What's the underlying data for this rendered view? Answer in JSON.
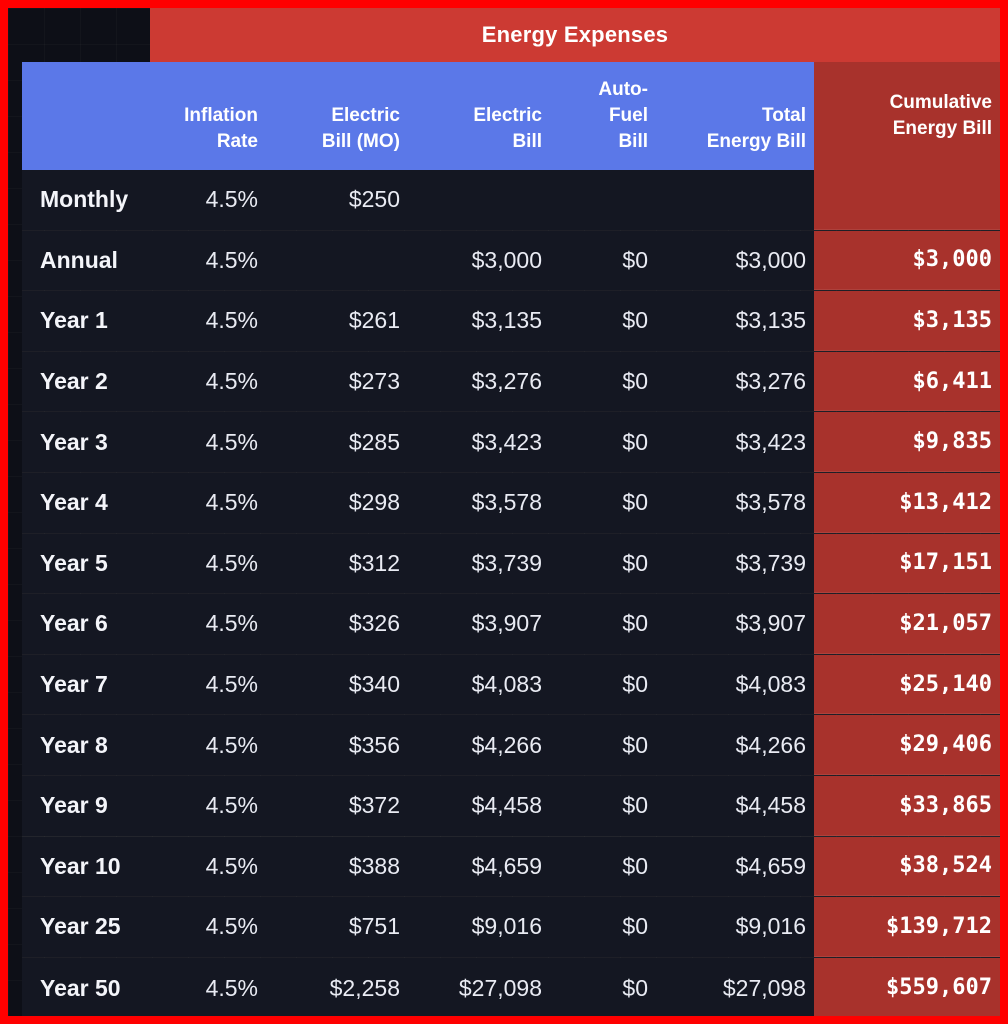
{
  "title": "Energy Expenses",
  "headers": [
    "",
    "Inflation\nRate",
    "Electric\nBill (MO)",
    "Electric\nBill",
    "Auto-\nFuel\nBill",
    "Total\nEnergy Bill",
    "Cumulative\nEnergy Bill"
  ],
  "rows": [
    [
      "Monthly",
      "4.5%",
      "$250",
      "",
      "",
      "",
      ""
    ],
    [
      "Annual",
      "4.5%",
      "",
      "$3,000",
      "$0",
      "$3,000",
      "$3,000"
    ],
    [
      "Year 1",
      "4.5%",
      "$261",
      "$3,135",
      "$0",
      "$3,135",
      "$3,135"
    ],
    [
      "Year 2",
      "4.5%",
      "$273",
      "$3,276",
      "$0",
      "$3,276",
      "$6,411"
    ],
    [
      "Year 3",
      "4.5%",
      "$285",
      "$3,423",
      "$0",
      "$3,423",
      "$9,835"
    ],
    [
      "Year 4",
      "4.5%",
      "$298",
      "$3,578",
      "$0",
      "$3,578",
      "$13,412"
    ],
    [
      "Year 5",
      "4.5%",
      "$312",
      "$3,739",
      "$0",
      "$3,739",
      "$17,151"
    ],
    [
      "Year 6",
      "4.5%",
      "$326",
      "$3,907",
      "$0",
      "$3,907",
      "$21,057"
    ],
    [
      "Year 7",
      "4.5%",
      "$340",
      "$4,083",
      "$0",
      "$4,083",
      "$25,140"
    ],
    [
      "Year 8",
      "4.5%",
      "$356",
      "$4,266",
      "$0",
      "$4,266",
      "$29,406"
    ],
    [
      "Year 9",
      "4.5%",
      "$372",
      "$4,458",
      "$0",
      "$4,458",
      "$33,865"
    ],
    [
      "Year 10",
      "4.5%",
      "$388",
      "$4,659",
      "$0",
      "$4,659",
      "$38,524"
    ],
    [
      "Year 25",
      "4.5%",
      "$751",
      "$9,016",
      "$0",
      "$9,016",
      "$139,712"
    ],
    [
      "Year 50",
      "4.5%",
      "$2,258",
      "$27,098",
      "$0",
      "$27,098",
      "$559,607"
    ]
  ],
  "colors": {
    "header_blue": "#5b78e8",
    "accent_red": "#cc3a33",
    "cumulative_red": "#a8322c",
    "background": "#0d0f17",
    "border": "#ff0000"
  }
}
